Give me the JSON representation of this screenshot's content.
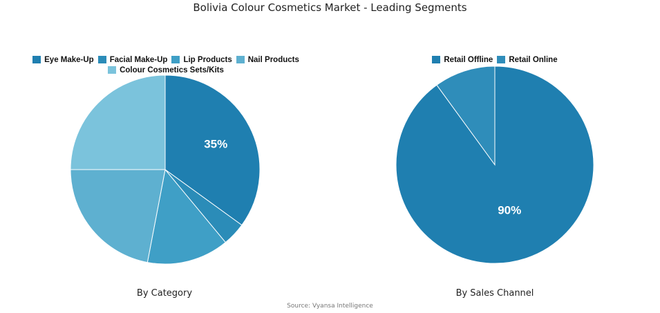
{
  "title": "Bolivia Colour Cosmetics Market - Leading Segments",
  "source": "Source: Vyansa Intelligence",
  "chart_data": [
    {
      "type": "pie",
      "caption": "By Category",
      "categories": [
        "Eye Make-Up",
        "Facial Make-Up",
        "Lip Products",
        "Nail Products",
        "Colour Cosmetics Sets/Kits"
      ],
      "values": [
        35,
        4,
        14,
        22,
        25
      ],
      "colors": [
        "#1f7fb0",
        "#2b8cb8",
        "#3f9fc6",
        "#5eb0d0",
        "#7bc3dc"
      ],
      "labels_shown": [
        "35%",
        "",
        "",
        "",
        ""
      ],
      "legend_position": "top",
      "start_angle_deg": 0
    },
    {
      "type": "pie",
      "caption": "By Sales Channel",
      "categories": [
        "Retail Offline",
        "Retail Online"
      ],
      "values": [
        90,
        10
      ],
      "colors": [
        "#1f7fb0",
        "#2f8dba"
      ],
      "labels_shown": [
        "90%",
        ""
      ],
      "legend_position": "top",
      "start_angle_deg": 0
    }
  ]
}
